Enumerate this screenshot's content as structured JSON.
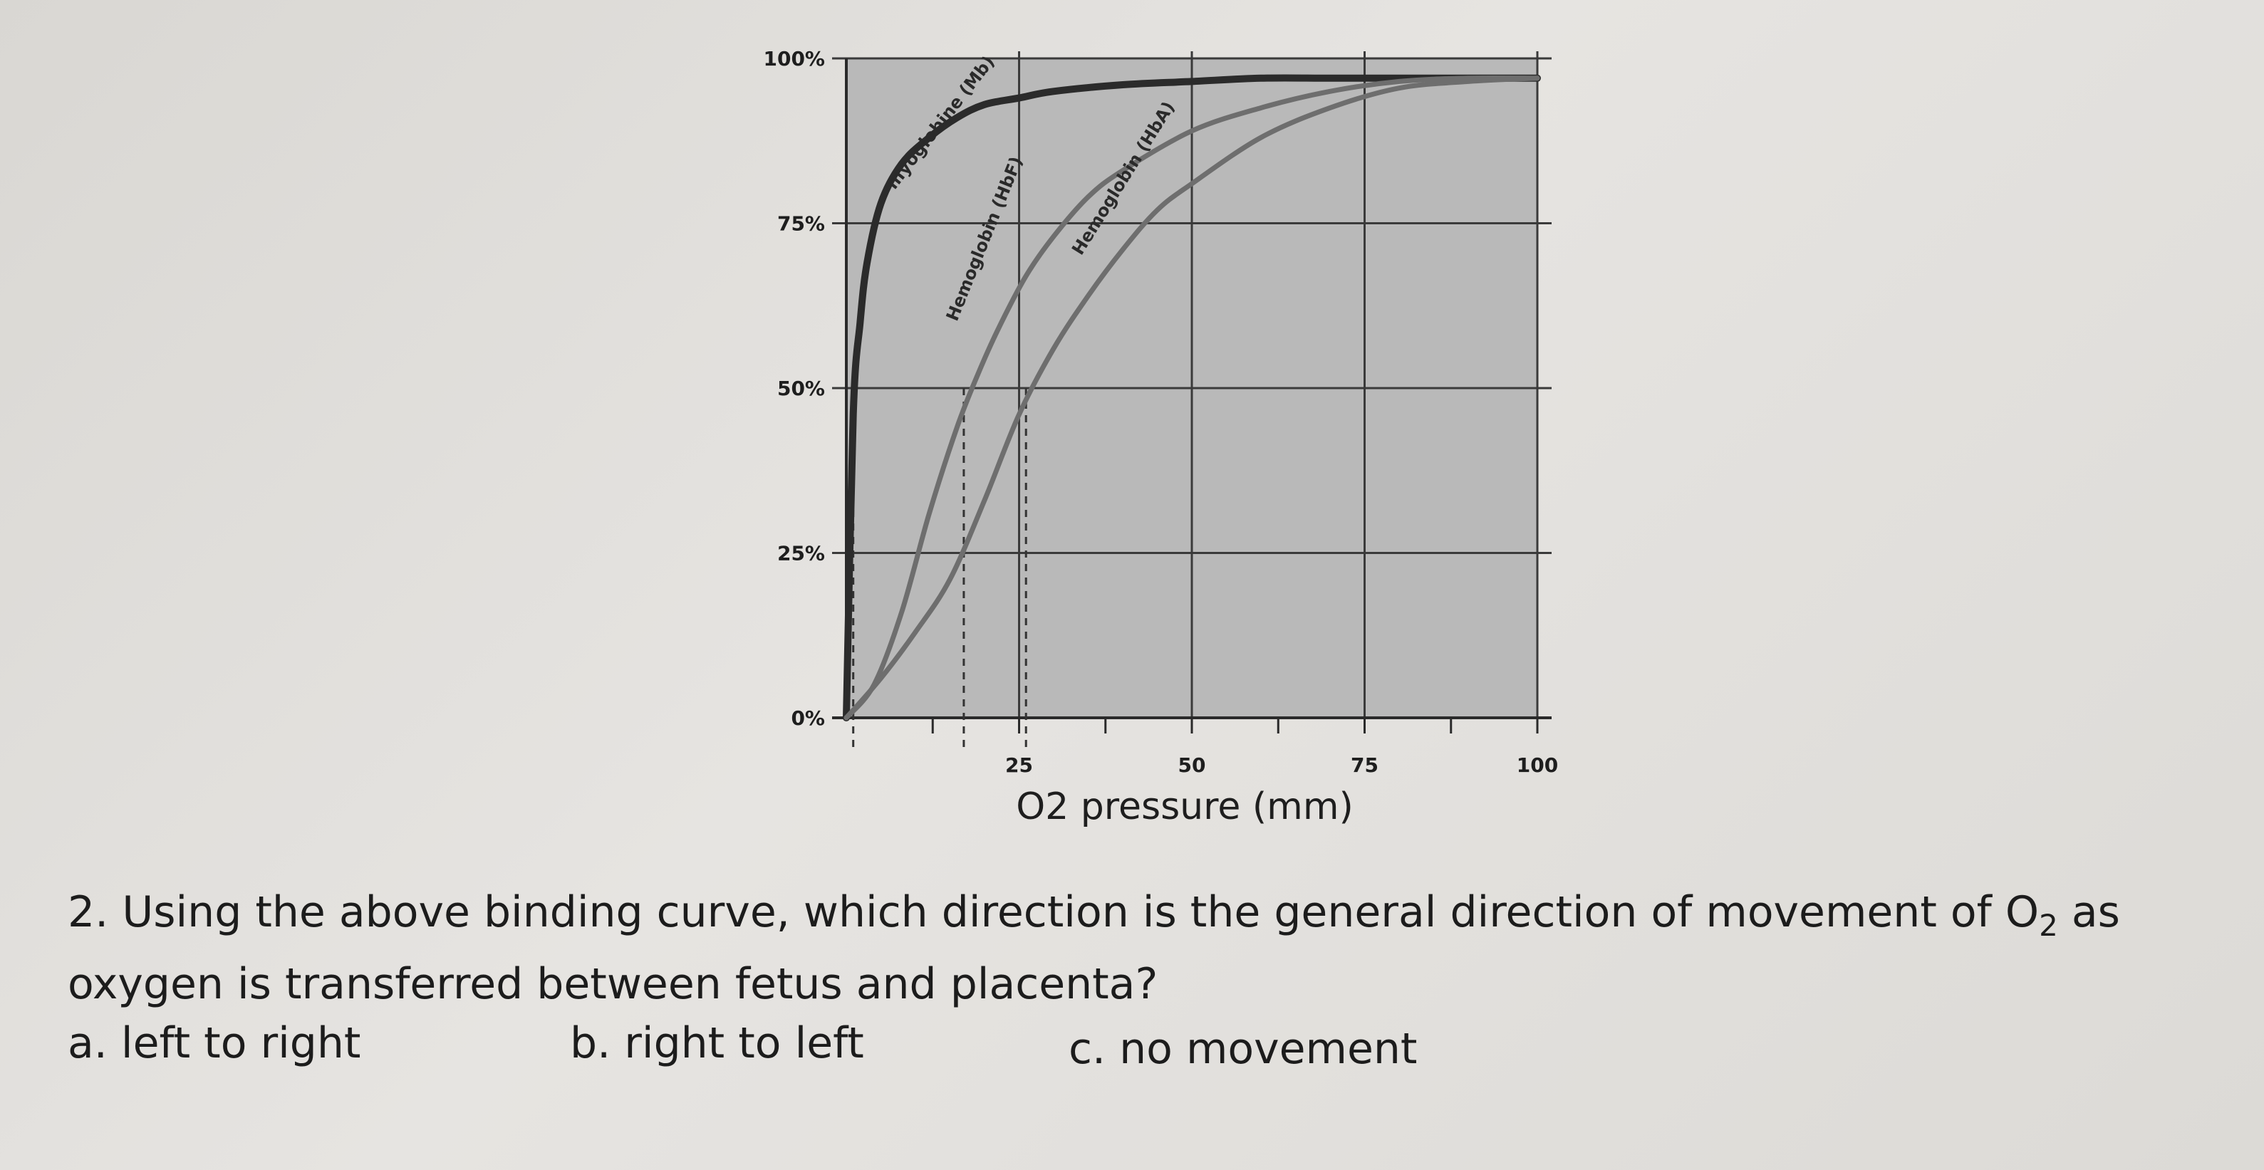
{
  "chart_data": {
    "type": "line",
    "title": "",
    "xlabel": "O2 pressure (mm)",
    "ylabel": "",
    "xlim": [
      0,
      100
    ],
    "ylim": [
      0,
      100
    ],
    "x_ticks": [
      {
        "value": 25,
        "label": "25"
      },
      {
        "value": 50,
        "label": "50"
      },
      {
        "value": 75,
        "label": "75"
      },
      {
        "value": 100,
        "label": "100"
      }
    ],
    "y_ticks": [
      {
        "value": 0,
        "label": "0%"
      },
      {
        "value": 25,
        "label": "25%"
      },
      {
        "value": 50,
        "label": "50%"
      },
      {
        "value": 75,
        "label": "75%"
      },
      {
        "value": 100,
        "label": "100%"
      }
    ],
    "grid": true,
    "plot_background": "#b9b9b9",
    "series": [
      {
        "name": "myoglobine (Mb)",
        "color": "#2b2b2b",
        "x": [
          0,
          1,
          2,
          3,
          5,
          8,
          12,
          16,
          20,
          25,
          30,
          40,
          50,
          60,
          70,
          80,
          90,
          100
        ],
        "y": [
          0,
          46,
          60,
          69,
          78,
          84,
          88,
          91,
          93,
          94,
          95,
          96,
          96.5,
          97,
          97,
          97,
          97,
          97
        ]
      },
      {
        "name": "Hemoglobin (HbF)",
        "color": "#6e6e6e",
        "x": [
          0,
          4,
          8,
          12,
          16,
          19,
          22,
          26,
          30,
          35,
          40,
          50,
          60,
          70,
          80,
          90,
          100
        ],
        "y": [
          0,
          5,
          16,
          31,
          44,
          52,
          59,
          67,
          73,
          79,
          83,
          89,
          92.5,
          95,
          96.5,
          97,
          97
        ]
      },
      {
        "name": "Hemoglobin (HbA)",
        "color": "#6e6e6e",
        "x": [
          0,
          5,
          10,
          15,
          20,
          25,
          30,
          35,
          40,
          45,
          50,
          60,
          70,
          80,
          90,
          100
        ],
        "y": [
          0,
          6,
          13,
          21,
          33,
          46,
          56,
          64,
          71,
          77,
          81,
          88,
          92.5,
          95.5,
          96.5,
          97
        ]
      }
    ],
    "reference_lines": [
      {
        "x": 1,
        "y": 50
      },
      {
        "x": 17,
        "y": 50
      },
      {
        "x": 26,
        "y": 50
      }
    ]
  },
  "question": {
    "prefix": "2. Using the above binding curve, which direction is the general direction of movement of O",
    "subscript": "2",
    "suffix": " as oxygen is transferred between fetus and placenta?"
  },
  "answers": [
    {
      "text": "a. left to right"
    },
    {
      "text": "b. right to left"
    },
    {
      "text": "c. no movement"
    }
  ]
}
